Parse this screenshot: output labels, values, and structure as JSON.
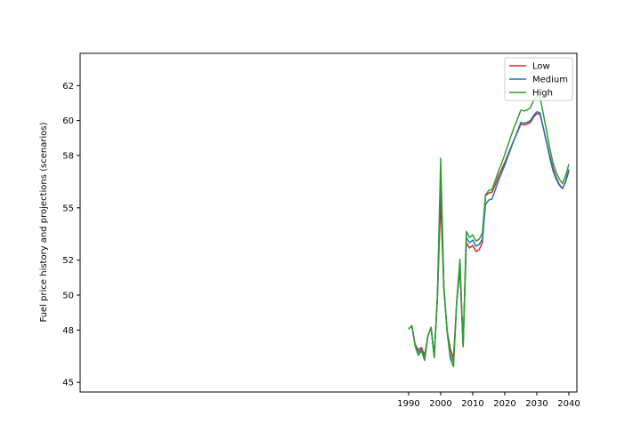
{
  "chart_data": {
    "type": "line",
    "title": "",
    "xlabel": "",
    "ylabel": "Fuel price history and projections (scenarios)",
    "xlim": [
      1887.5,
      2042.5
    ],
    "ylim": [
      44.45,
      63.85
    ],
    "x_ticks": [
      1990,
      2000,
      2010,
      2020,
      2030,
      2040
    ],
    "y_ticks": [
      45,
      48,
      50,
      52,
      55,
      58,
      60,
      62
    ],
    "grid": false,
    "legend_position": "top-right",
    "x": [
      1990,
      1991,
      1992,
      1993,
      1994,
      1995,
      1996,
      1997,
      1998,
      1999,
      2000,
      2001,
      2002,
      2003,
      2004,
      2005,
      2006,
      2007,
      2008,
      2009,
      2010,
      2011,
      2012,
      2013,
      2014,
      2015,
      2016,
      2017,
      2018,
      2019,
      2020,
      2021,
      2022,
      2023,
      2024,
      2025,
      2026,
      2027,
      2028,
      2029,
      2030,
      2031,
      2032,
      2033,
      2034,
      2035,
      2036,
      2037,
      2038,
      2039,
      2040
    ],
    "series": [
      {
        "name": "Low",
        "color": "#d62728",
        "values": [
          48.05,
          48.25,
          47.2,
          46.85,
          47.0,
          46.55,
          47.65,
          48.15,
          46.5,
          50.0,
          55.5,
          50.3,
          48.0,
          46.9,
          46.4,
          49.6,
          51.5,
          47.1,
          53.0,
          52.7,
          52.85,
          52.5,
          52.6,
          53.0,
          55.7,
          55.85,
          55.9,
          56.3,
          56.8,
          57.2,
          57.6,
          58.05,
          58.5,
          58.95,
          59.35,
          59.8,
          59.75,
          59.8,
          59.9,
          60.2,
          60.4,
          60.35,
          59.6,
          58.8,
          58.0,
          57.3,
          56.75,
          56.35,
          56.1,
          56.5,
          57.1
        ]
      },
      {
        "name": "Medium",
        "color": "#1f77b4",
        "values": [
          48.05,
          48.25,
          47.15,
          46.7,
          46.9,
          46.4,
          47.65,
          48.15,
          46.45,
          50.0,
          57.1,
          50.4,
          47.95,
          46.6,
          46.15,
          49.6,
          51.8,
          47.05,
          53.3,
          53.0,
          53.15,
          52.8,
          52.9,
          53.2,
          55.2,
          55.45,
          55.5,
          56.0,
          56.55,
          57.0,
          57.45,
          57.95,
          58.45,
          58.95,
          59.4,
          59.9,
          59.85,
          59.9,
          60.0,
          60.3,
          60.5,
          60.45,
          59.6,
          58.75,
          57.9,
          57.15,
          56.65,
          56.3,
          56.1,
          56.55,
          57.2
        ]
      },
      {
        "name": "High",
        "color": "#2ca02c",
        "values": [
          48.05,
          48.25,
          47.1,
          46.55,
          46.8,
          46.25,
          47.65,
          48.15,
          46.4,
          50.1,
          57.85,
          50.5,
          47.9,
          46.35,
          45.9,
          49.65,
          52.05,
          47.05,
          53.65,
          53.3,
          53.45,
          53.1,
          53.2,
          53.55,
          55.75,
          56.0,
          56.05,
          56.55,
          57.1,
          57.55,
          58.05,
          58.6,
          59.15,
          59.65,
          60.1,
          60.6,
          60.55,
          60.6,
          60.75,
          61.15,
          61.4,
          61.35,
          60.4,
          59.45,
          58.45,
          57.6,
          57.05,
          56.65,
          56.4,
          56.85,
          57.5
        ]
      }
    ]
  }
}
